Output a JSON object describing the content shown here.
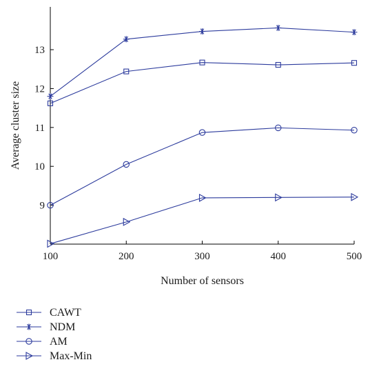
{
  "chart_data": {
    "type": "line",
    "title": "",
    "xlabel": "Number of sensors",
    "ylabel": "Average cluster size",
    "x": [
      100,
      200,
      300,
      400,
      500
    ],
    "xlim": [
      100,
      500
    ],
    "ylim": [
      8,
      14.1
    ],
    "xticks": [
      "100",
      "200",
      "300",
      "400",
      "500"
    ],
    "yticks": [
      {
        "value": 9,
        "label": "9"
      },
      {
        "value": 10,
        "label": "10"
      },
      {
        "value": 11,
        "label": "11"
      },
      {
        "value": 12,
        "label": "12"
      },
      {
        "value": 13,
        "label": "13"
      }
    ],
    "grid": false,
    "legend_position": "bottom-left, below plot",
    "line_color": "#2b3a9c",
    "series": [
      {
        "name": "CAWT",
        "marker": "square",
        "values": [
          11.62,
          12.44,
          12.67,
          12.61,
          12.66
        ]
      },
      {
        "name": "NDM",
        "marker": "star",
        "values": [
          11.8,
          13.27,
          13.47,
          13.56,
          13.45
        ]
      },
      {
        "name": "AM",
        "marker": "circle",
        "values": [
          9.0,
          10.05,
          10.87,
          10.99,
          10.93
        ]
      },
      {
        "name": "Max-Min",
        "marker": "triangle-right",
        "values": [
          8.01,
          8.57,
          9.19,
          9.2,
          9.21
        ]
      }
    ]
  }
}
